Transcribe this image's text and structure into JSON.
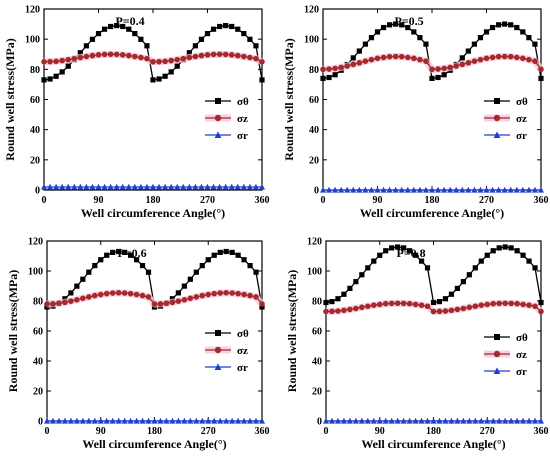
{
  "chart_data": [
    {
      "type": "line",
      "title": "P=0.4",
      "xlabel": "Well circumference Angle(°)",
      "ylabel": "Round well stress(MPa)",
      "xlim": [
        0,
        360
      ],
      "ylim": [
        0,
        120
      ],
      "xticks": [
        0,
        90,
        180,
        270,
        360
      ],
      "yticks": [
        0,
        20,
        40,
        60,
        80,
        100,
        120
      ],
      "x": [
        0,
        10,
        20,
        30,
        40,
        50,
        60,
        70,
        80,
        90,
        100,
        110,
        120,
        130,
        140,
        150,
        160,
        170,
        180,
        190,
        200,
        210,
        220,
        230,
        240,
        250,
        260,
        270,
        280,
        290,
        300,
        310,
        320,
        330,
        340,
        350,
        360
      ],
      "legend_position": "right",
      "series": [
        {
          "name": "σθ",
          "color": "#000000",
          "marker": "square",
          "values": [
            73,
            73.6,
            75.4,
            78.3,
            82.1,
            86.4,
            91,
            95.6,
            99.9,
            103.7,
            106.6,
            108.4,
            109,
            108.4,
            106.6,
            103.7,
            99.9,
            95.6,
            73,
            73.6,
            75.4,
            78.3,
            82.1,
            86.4,
            91,
            95.6,
            99.9,
            103.7,
            106.6,
            108.4,
            109,
            108.4,
            106.6,
            103.7,
            99.9,
            95.6,
            73
          ]
        },
        {
          "name": "σz",
          "color": "#a52a2a",
          "marker": "circle",
          "values": [
            85,
            85.1,
            85.3,
            85.8,
            86.4,
            87.1,
            87.8,
            88.5,
            89.1,
            89.6,
            89.9,
            90,
            89.9,
            89.6,
            89.1,
            88.5,
            87.8,
            87.1,
            85,
            85.1,
            85.3,
            85.8,
            86.4,
            87.1,
            87.8,
            88.5,
            89.1,
            89.6,
            89.9,
            90,
            89.9,
            89.6,
            89.1,
            88.5,
            87.8,
            87.1,
            85
          ]
        },
        {
          "name": "σr",
          "color": "#1f3fd1",
          "marker": "triangle",
          "values": [
            2,
            2,
            2,
            2,
            2,
            2,
            2,
            2,
            2,
            2,
            2,
            2,
            2,
            2,
            2,
            2,
            2,
            2,
            2,
            2,
            2,
            2,
            2,
            2,
            2,
            2,
            2,
            2,
            2,
            2,
            2,
            2,
            2,
            2,
            2,
            2,
            2
          ]
        }
      ]
    },
    {
      "type": "line",
      "title": "P=0.5",
      "xlabel": "Well circumference Angle(°)",
      "ylabel": "Round well stress(MPa)",
      "xlim": [
        0,
        360
      ],
      "ylim": [
        0,
        120
      ],
      "xticks": [
        0,
        90,
        180,
        270,
        360
      ],
      "yticks": [
        0,
        20,
        40,
        60,
        80,
        100,
        120
      ],
      "x": [
        0,
        10,
        20,
        30,
        40,
        50,
        60,
        70,
        80,
        90,
        100,
        110,
        120,
        130,
        140,
        150,
        160,
        170,
        180,
        190,
        200,
        210,
        220,
        230,
        240,
        250,
        260,
        270,
        280,
        290,
        300,
        310,
        320,
        330,
        340,
        350,
        360
      ],
      "legend_position": "right",
      "series": [
        {
          "name": "σθ",
          "color": "#000000",
          "marker": "square",
          "values": [
            74,
            74.6,
            76.4,
            79.4,
            83.2,
            87.6,
            92.1,
            96.7,
            101,
            104.8,
            107.7,
            109.5,
            110,
            109.5,
            107.7,
            104.8,
            101,
            96.7,
            74,
            74.6,
            76.4,
            79.4,
            83.2,
            87.6,
            92.1,
            96.7,
            101,
            104.8,
            107.7,
            109.5,
            110,
            109.5,
            107.7,
            104.8,
            101,
            96.7,
            74
          ]
        },
        {
          "name": "σz",
          "color": "#a52a2a",
          "marker": "circle",
          "values": [
            80,
            80.2,
            80.6,
            81.3,
            82.2,
            83.3,
            84.3,
            85.4,
            86.4,
            87.3,
            87.9,
            88.4,
            88.5,
            88.4,
            87.9,
            87.3,
            86.4,
            85.4,
            80,
            80.2,
            80.6,
            81.3,
            82.2,
            83.3,
            84.3,
            85.4,
            86.4,
            87.3,
            87.9,
            88.4,
            88.5,
            88.4,
            87.9,
            87.3,
            86.4,
            85.4,
            80
          ]
        },
        {
          "name": "σr",
          "color": "#1f3fd1",
          "marker": "triangle",
          "values": [
            0,
            0,
            0,
            0,
            0,
            0,
            0,
            0,
            0,
            0,
            0,
            0,
            0,
            0,
            0,
            0,
            0,
            0,
            0,
            0,
            0,
            0,
            0,
            0,
            0,
            0,
            0,
            0,
            0,
            0,
            0,
            0,
            0,
            0,
            0,
            0,
            0
          ]
        }
      ]
    },
    {
      "type": "line",
      "title": "P=0.6",
      "xlabel": "Well circumference Angle(°)",
      "ylabel": "Round well stress(MPa)",
      "xlim": [
        0,
        360
      ],
      "ylim": [
        0,
        120
      ],
      "xticks": [
        0,
        90,
        180,
        270,
        360
      ],
      "yticks": [
        0,
        20,
        40,
        60,
        80,
        100,
        120
      ],
      "x": [
        0,
        10,
        20,
        30,
        40,
        50,
        60,
        70,
        80,
        90,
        100,
        110,
        120,
        130,
        140,
        150,
        160,
        170,
        180,
        190,
        200,
        210,
        220,
        230,
        240,
        250,
        260,
        270,
        280,
        290,
        300,
        310,
        320,
        330,
        340,
        350,
        360
      ],
      "legend_position": "right",
      "series": [
        {
          "name": "σθ",
          "color": "#000000",
          "marker": "square",
          "values": [
            76,
            76.6,
            78.5,
            81.5,
            85.4,
            89.9,
            94.5,
            99.2,
            103.6,
            107.5,
            110.5,
            112.4,
            113,
            112.4,
            110.5,
            107.5,
            103.6,
            99.2,
            76,
            76.6,
            78.5,
            81.5,
            85.4,
            89.9,
            94.5,
            99.2,
            103.6,
            107.5,
            110.5,
            112.4,
            113,
            112.4,
            110.5,
            107.5,
            103.6,
            99.2,
            76
          ]
        },
        {
          "name": "σz",
          "color": "#a52a2a",
          "marker": "circle",
          "values": [
            78,
            78.1,
            78.5,
            79.1,
            79.9,
            80.8,
            81.8,
            82.7,
            83.6,
            84.3,
            84.9,
            85.3,
            85.5,
            85.3,
            84.9,
            84.3,
            83.6,
            82.7,
            78,
            78.1,
            78.5,
            79.1,
            79.9,
            80.8,
            81.8,
            82.7,
            83.6,
            84.3,
            84.9,
            85.3,
            85.5,
            85.3,
            84.9,
            84.3,
            83.6,
            82.7,
            78
          ]
        },
        {
          "name": "σr",
          "color": "#1f3fd1",
          "marker": "triangle",
          "values": [
            0,
            0,
            0,
            0,
            0,
            0,
            0,
            0,
            0,
            0,
            0,
            0,
            0,
            0,
            0,
            0,
            0,
            0,
            0,
            0,
            0,
            0,
            0,
            0,
            0,
            0,
            0,
            0,
            0,
            0,
            0,
            0,
            0,
            0,
            0,
            0,
            0
          ]
        }
      ]
    },
    {
      "type": "line",
      "title": "P=0.8",
      "xlabel": "Well circumference Angle(°)",
      "ylabel": "Round well stress(MPa)",
      "xlim": [
        0,
        360
      ],
      "ylim": [
        0,
        120
      ],
      "xticks": [
        0,
        90,
        180,
        270,
        360
      ],
      "yticks": [
        0,
        20,
        40,
        60,
        80,
        100,
        120
      ],
      "x": [
        0,
        10,
        20,
        30,
        40,
        50,
        60,
        70,
        80,
        90,
        100,
        110,
        120,
        130,
        140,
        150,
        160,
        170,
        180,
        190,
        200,
        210,
        220,
        230,
        240,
        250,
        260,
        270,
        280,
        290,
        300,
        310,
        320,
        330,
        340,
        350,
        360
      ],
      "legend_position": "right",
      "series": [
        {
          "name": "σθ",
          "color": "#000000",
          "marker": "square",
          "values": [
            79,
            79.6,
            81.5,
            84.5,
            88.4,
            92.9,
            97.5,
            102.1,
            106.6,
            110.5,
            113.5,
            115.4,
            116,
            115.4,
            113.5,
            110.5,
            106.6,
            102.1,
            79,
            79.6,
            81.5,
            84.5,
            88.4,
            92.9,
            97.5,
            102.1,
            106.6,
            110.5,
            113.5,
            115.4,
            116,
            115.4,
            113.5,
            110.5,
            106.6,
            102.1,
            79
          ]
        },
        {
          "name": "σz",
          "color": "#a52a2a",
          "marker": "circle",
          "values": [
            73,
            73.1,
            73.3,
            73.8,
            74.4,
            75,
            75.8,
            76.5,
            77.2,
            77.7,
            78.2,
            78.4,
            78.5,
            78.4,
            78.2,
            77.7,
            77.2,
            76.5,
            73,
            73.1,
            73.3,
            73.8,
            74.4,
            75,
            75.8,
            76.5,
            77.2,
            77.7,
            78.2,
            78.4,
            78.5,
            78.4,
            78.2,
            77.7,
            77.2,
            76.5,
            73
          ]
        },
        {
          "name": "σr",
          "color": "#1f3fd1",
          "marker": "triangle",
          "values": [
            0,
            0,
            0,
            0,
            0,
            0,
            0,
            0,
            0,
            0,
            0,
            0,
            0,
            0,
            0,
            0,
            0,
            0,
            0,
            0,
            0,
            0,
            0,
            0,
            0,
            0,
            0,
            0,
            0,
            0,
            0,
            0,
            0,
            0,
            0,
            0,
            0
          ]
        }
      ]
    }
  ]
}
